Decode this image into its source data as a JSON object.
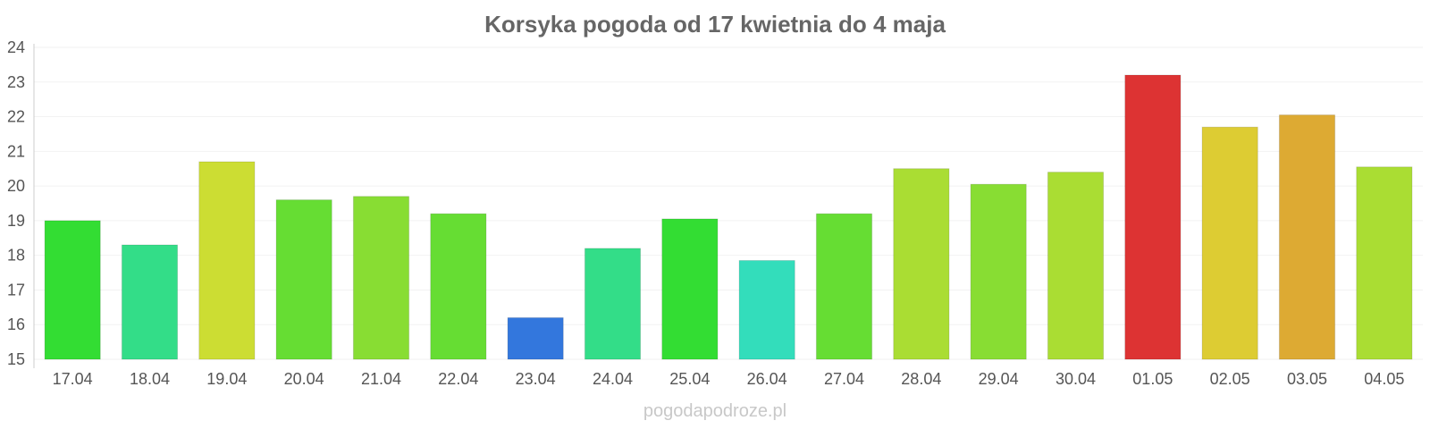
{
  "chart_data": {
    "type": "bar",
    "title": "Korsyka pogoda od 17 kwietnia do 4 maja",
    "watermark": "pogodapodroze.pl",
    "xlabel": "",
    "ylabel": "",
    "ylim": [
      15,
      24
    ],
    "yticks": [
      "15",
      "16",
      "17",
      "18",
      "19",
      "20",
      "21",
      "22",
      "23",
      "24"
    ],
    "grid": true,
    "categories": [
      "17.04",
      "18.04",
      "19.04",
      "20.04",
      "21.04",
      "22.04",
      "23.04",
      "24.04",
      "25.04",
      "26.04",
      "27.04",
      "28.04",
      "29.04",
      "30.04",
      "01.05",
      "02.05",
      "03.05",
      "04.05"
    ],
    "values": [
      19.0,
      18.3,
      20.7,
      19.6,
      19.7,
      19.2,
      16.2,
      18.2,
      19.05,
      17.85,
      19.2,
      20.5,
      20.05,
      20.4,
      23.2,
      21.7,
      22.05,
      20.55
    ],
    "colors": [
      "#33dd33",
      "#33dd88",
      "#ccdd33",
      "#66dd33",
      "#88dd33",
      "#66dd33",
      "#3377dd",
      "#33dd88",
      "#33dd33",
      "#33ddbb",
      "#66dd33",
      "#aadd33",
      "#88dd33",
      "#aadd33",
      "#dd3333",
      "#ddcc33",
      "#ddaa33",
      "#aadd33"
    ]
  }
}
